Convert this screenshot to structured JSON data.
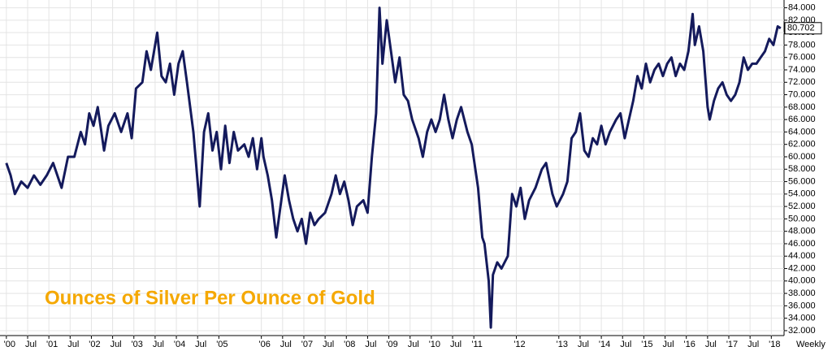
{
  "chart_data": {
    "type": "line",
    "title": "Ounces of Silver Per Ounce of Gold",
    "period_label": "Weekly",
    "last_label": "80.702",
    "color": "#141a5c",
    "title_color": "#f5a800",
    "grid": true,
    "xlim": [
      1999.85,
      2018.3
    ],
    "ylim": [
      31.6,
      84.6
    ],
    "xticks": [
      {
        "value": 2000,
        "label": "'00"
      },
      {
        "value": 2000.5,
        "label": "Jul"
      },
      {
        "value": 2001,
        "label": "'01"
      },
      {
        "value": 2001.5,
        "label": "Jul"
      },
      {
        "value": 2002,
        "label": "'02"
      },
      {
        "value": 2002.5,
        "label": "Jul"
      },
      {
        "value": 2003,
        "label": "'03"
      },
      {
        "value": 2003.5,
        "label": "Jul"
      },
      {
        "value": 2004,
        "label": "'04"
      },
      {
        "value": 2004.5,
        "label": "Jul"
      },
      {
        "value": 2005,
        "label": "'05"
      },
      {
        "value": 2006,
        "label": "'06"
      },
      {
        "value": 2006.5,
        "label": "Jul"
      },
      {
        "value": 2007,
        "label": "'07"
      },
      {
        "value": 2007.5,
        "label": "Jul"
      },
      {
        "value": 2008,
        "label": "'08"
      },
      {
        "value": 2008.5,
        "label": "Jul"
      },
      {
        "value": 2009,
        "label": "'09"
      },
      {
        "value": 2009.5,
        "label": "Jul"
      },
      {
        "value": 2010,
        "label": "'10"
      },
      {
        "value": 2010.5,
        "label": "Jul"
      },
      {
        "value": 2011,
        "label": "'11"
      },
      {
        "value": 2012,
        "label": "'12"
      },
      {
        "value": 2013,
        "label": "'13"
      },
      {
        "value": 2013.5,
        "label": "Jul"
      },
      {
        "value": 2014,
        "label": "'14"
      },
      {
        "value": 2014.5,
        "label": "Jul"
      },
      {
        "value": 2015,
        "label": "'15"
      },
      {
        "value": 2015.5,
        "label": "Jul"
      },
      {
        "value": 2016,
        "label": "'16"
      },
      {
        "value": 2016.5,
        "label": "Jul"
      },
      {
        "value": 2017,
        "label": "'17"
      },
      {
        "value": 2017.5,
        "label": "Jul"
      },
      {
        "value": 2018,
        "label": "'18"
      }
    ],
    "yticks": [
      {
        "value": 32,
        "label": "32.000"
      },
      {
        "value": 34,
        "label": "34.000"
      },
      {
        "value": 36,
        "label": "36.000"
      },
      {
        "value": 38,
        "label": "38.000"
      },
      {
        "value": 40,
        "label": "40.000"
      },
      {
        "value": 42,
        "label": "42.000"
      },
      {
        "value": 44,
        "label": "44.000"
      },
      {
        "value": 46,
        "label": "46.000"
      },
      {
        "value": 48,
        "label": "48.000"
      },
      {
        "value": 50,
        "label": "50.000"
      },
      {
        "value": 52,
        "label": "52.000"
      },
      {
        "value": 54,
        "label": "54.000"
      },
      {
        "value": 56,
        "label": "56.000"
      },
      {
        "value": 58,
        "label": "58.000"
      },
      {
        "value": 60,
        "label": "60.000"
      },
      {
        "value": 62,
        "label": "62.000"
      },
      {
        "value": 64,
        "label": "64.000"
      },
      {
        "value": 66,
        "label": "66.000"
      },
      {
        "value": 68,
        "label": "68.000"
      },
      {
        "value": 70,
        "label": "70.000"
      },
      {
        "value": 72,
        "label": "72.000"
      },
      {
        "value": 74,
        "label": "74.000"
      },
      {
        "value": 76,
        "label": "76.000"
      },
      {
        "value": 78,
        "label": "78.000"
      },
      {
        "value": 80,
        "label": "80.000"
      },
      {
        "value": 82,
        "label": "82.000"
      },
      {
        "value": 84,
        "label": "84.000"
      }
    ],
    "x": [
      2000.0,
      2000.1,
      2000.2,
      2000.35,
      2000.5,
      2000.65,
      2000.8,
      2000.95,
      2001.1,
      2001.2,
      2001.3,
      2001.45,
      2001.6,
      2001.75,
      2001.85,
      2001.95,
      2002.05,
      2002.15,
      2002.3,
      2002.4,
      2002.55,
      2002.7,
      2002.85,
      2002.95,
      2003.05,
      2003.2,
      2003.3,
      2003.4,
      2003.55,
      2003.65,
      2003.75,
      2003.85,
      2003.95,
      2004.05,
      2004.15,
      2004.25,
      2004.4,
      2004.5,
      2004.55,
      2004.65,
      2004.75,
      2004.85,
      2004.95,
      2005.05,
      2005.15,
      2005.25,
      2005.35,
      2005.45,
      2005.6,
      2005.7,
      2005.8,
      2005.9,
      2006.0,
      2006.05,
      2006.15,
      2006.25,
      2006.35,
      2006.45,
      2006.55,
      2006.65,
      2006.75,
      2006.85,
      2006.95,
      2007.05,
      2007.15,
      2007.25,
      2007.35,
      2007.5,
      2007.65,
      2007.75,
      2007.85,
      2007.95,
      2008.05,
      2008.15,
      2008.25,
      2008.4,
      2008.5,
      2008.6,
      2008.7,
      2008.78,
      2008.85,
      2008.95,
      2009.05,
      2009.15,
      2009.25,
      2009.35,
      2009.45,
      2009.55,
      2009.7,
      2009.8,
      2009.9,
      2010.0,
      2010.1,
      2010.2,
      2010.3,
      2010.4,
      2010.5,
      2010.6,
      2010.7,
      2010.85,
      2010.95,
      2011.1,
      2011.2,
      2011.25,
      2011.35,
      2011.4,
      2011.45,
      2011.55,
      2011.65,
      2011.8,
      2011.9,
      2012.0,
      2012.1,
      2012.2,
      2012.3,
      2012.45,
      2012.6,
      2012.7,
      2012.85,
      2012.95,
      2013.1,
      2013.2,
      2013.3,
      2013.4,
      2013.5,
      2013.6,
      2013.7,
      2013.8,
      2013.9,
      2014.0,
      2014.1,
      2014.2,
      2014.35,
      2014.45,
      2014.55,
      2014.65,
      2014.75,
      2014.85,
      2014.95,
      2015.05,
      2015.15,
      2015.25,
      2015.35,
      2015.45,
      2015.55,
      2015.65,
      2015.75,
      2015.85,
      2015.95,
      2016.05,
      2016.15,
      2016.2,
      2016.3,
      2016.4,
      2016.5,
      2016.55,
      2016.65,
      2016.75,
      2016.85,
      2016.95,
      2017.05,
      2017.15,
      2017.25,
      2017.35,
      2017.45,
      2017.55,
      2017.65,
      2017.75,
      2017.85,
      2017.95,
      2018.05,
      2018.15,
      2018.22
    ],
    "values": [
      59,
      57,
      54,
      56,
      55,
      57,
      55.5,
      57,
      59,
      57,
      55,
      60,
      60,
      64,
      62,
      67,
      65,
      68,
      61,
      65,
      67,
      64,
      67,
      63,
      71,
      72,
      77,
      74,
      80,
      73,
      72,
      75,
      70,
      75,
      77,
      72,
      64,
      56,
      52,
      64,
      67,
      61,
      64,
      58,
      65,
      59,
      64,
      61,
      62,
      60,
      63,
      58,
      63,
      60,
      57,
      53,
      47,
      52,
      57,
      53,
      50,
      48,
      50,
      46,
      51,
      49,
      50,
      51,
      54,
      57,
      54,
      56,
      53,
      49,
      52,
      53,
      51,
      60,
      67,
      84,
      75,
      82,
      77,
      72,
      76,
      70,
      69,
      66,
      63,
      60,
      64,
      66,
      64,
      66,
      70,
      66,
      63,
      66,
      68,
      64,
      62,
      55,
      47,
      46,
      40,
      32.5,
      41,
      43,
      42,
      44,
      54,
      52,
      55,
      50,
      53,
      55,
      58,
      59,
      54,
      52,
      54,
      56,
      63,
      64,
      67,
      61,
      60,
      63,
      62,
      65,
      62,
      64,
      66,
      67,
      63,
      66,
      69,
      73,
      71,
      75,
      72,
      74,
      75,
      73,
      75,
      76,
      73,
      75,
      74,
      77,
      83,
      78,
      81,
      77,
      68,
      66,
      69,
      71,
      72,
      70,
      69,
      70,
      72,
      76,
      74,
      75,
      75,
      76,
      77,
      79,
      78,
      81,
      80.702
    ]
  }
}
